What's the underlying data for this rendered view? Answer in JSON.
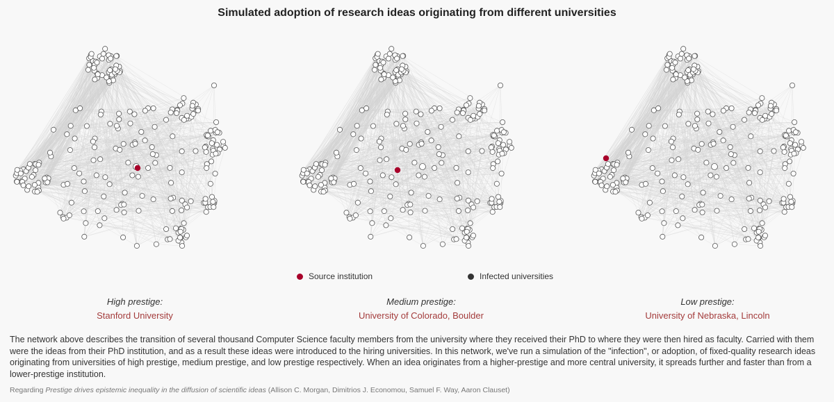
{
  "title": "Simulated adoption of research ideas originating from different universities",
  "legend": {
    "source_label": "Source institution",
    "infected_label": "Infected universities",
    "source_color": "#a8002a",
    "infected_color": "#333333"
  },
  "panels": [
    {
      "prestige": "High prestige:",
      "university": "Stanford University",
      "source_cluster": "center"
    },
    {
      "prestige": "Medium prestige:",
      "university": "University of Colorado, Boulder",
      "source_cluster": "inner-left"
    },
    {
      "prestige": "Low prestige:",
      "university": "University of Nebraska, Lincoln",
      "source_cluster": "left"
    }
  ],
  "description": "The network above describes the transition of several thousand Computer Science faculty members from the university where they received their PhD to where they were then hired as faculty. Carried with them were the ideas from their PhD institution, and as a result these ideas were introduced to the hiring universities. In this network, we've run a simulation of the \"infection\", or adoption, of fixed-quality research ideas originating from universities of high prestige, medium prestige, and low prestige respectively. When an idea originates from a higher-prestige and more central university, it spreads further and faster than from a lower-prestige institution.",
  "reference": {
    "prefix": "Regarding ",
    "paper_title": "Prestige drives epistemic inequality in the diffusion of scientific ideas",
    "authors": " (Allison C. Morgan, Dimitrios J. Economou, Samuel F. Way, Aaron Clauset)"
  },
  "colors": {
    "edge": "#d3d3d3",
    "node_fill": "#ffffff",
    "node_stroke": "#555555",
    "accent_text": "#a33b3b"
  }
}
